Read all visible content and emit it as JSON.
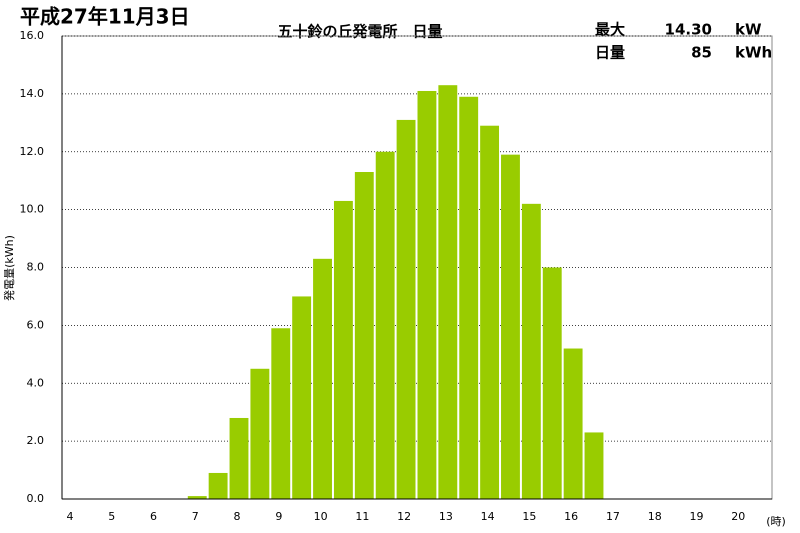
{
  "chart_data": {
    "type": "bar",
    "title": "平成27年11月3日",
    "subtitle": "五十鈴の丘発電所　日量",
    "summary": [
      {
        "label": "最大",
        "value": "14.30",
        "unit": "kW"
      },
      {
        "label": "日量",
        "value": "85",
        "unit": "kWh"
      }
    ],
    "ylabel": "発電量(kWh)",
    "xunit": "(時)",
    "categories": [
      "4",
      null,
      "5",
      null,
      "6",
      null,
      "7",
      null,
      "8",
      null,
      "9",
      null,
      "10",
      null,
      "11",
      null,
      "12",
      null,
      "13",
      null,
      "14",
      null,
      "15",
      null,
      "16",
      null,
      "17",
      null,
      "18",
      null,
      "19",
      null,
      "20",
      null
    ],
    "values": [
      null,
      null,
      null,
      null,
      null,
      null,
      0.1,
      0.9,
      2.8,
      4.5,
      5.9,
      7.0,
      8.3,
      10.3,
      11.3,
      12.0,
      13.1,
      14.1,
      14.3,
      13.9,
      12.9,
      11.9,
      10.2,
      8.0,
      5.2,
      2.3,
      null,
      null,
      null,
      null,
      null,
      null,
      null,
      null
    ],
    "color": "#99cc00",
    "ylim": [
      0,
      16
    ],
    "yticks": [
      {
        "value": 0,
        "label": "0.0"
      },
      {
        "value": 2,
        "label": "2.0"
      },
      {
        "value": 4,
        "label": "4.0"
      },
      {
        "value": 6,
        "label": "6.0"
      },
      {
        "value": 8,
        "label": "8.0"
      },
      {
        "value": 10,
        "label": "10.0"
      },
      {
        "value": 12,
        "label": "12.0"
      },
      {
        "value": 14,
        "label": "14.0"
      },
      {
        "value": 16,
        "label": "16.0"
      }
    ],
    "grid": true
  }
}
